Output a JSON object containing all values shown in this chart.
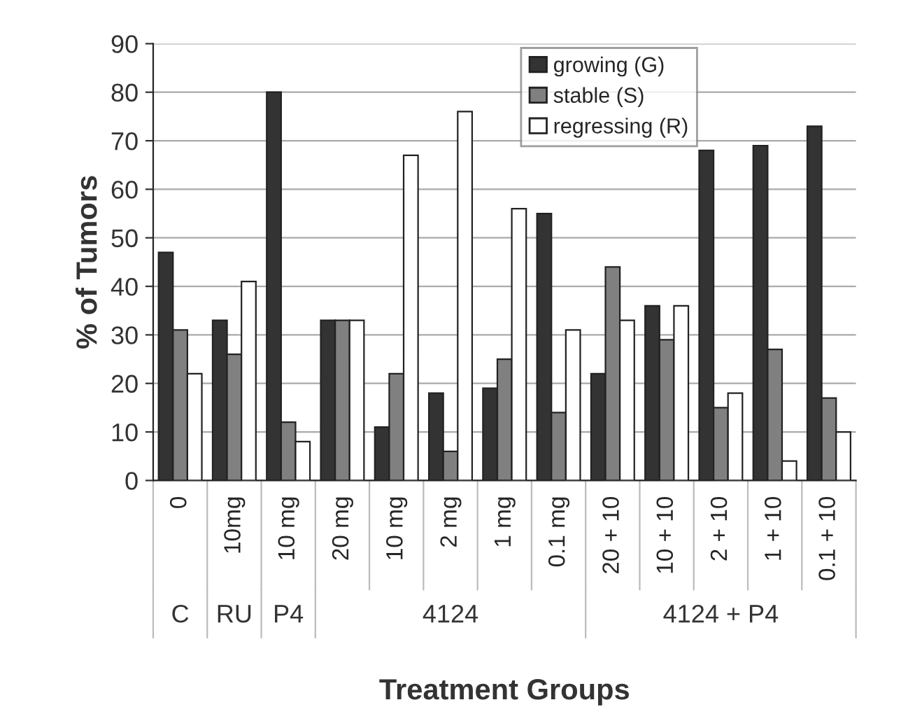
{
  "chart_data": {
    "type": "bar",
    "xlabel": "Treatment Groups",
    "ylabel": "% of Tumors",
    "categories": [
      "0",
      "10mg",
      "10 mg",
      "20 mg",
      "10 mg",
      "2 mg",
      "1 mg",
      "0.1 mg",
      "20 + 10",
      "10 + 10",
      "2 + 10",
      "1 + 10",
      "0.1 + 10"
    ],
    "series": [
      {
        "name": "growing (G)",
        "color": "#333333",
        "values": [
          47,
          33,
          80,
          33,
          11,
          18,
          19,
          55,
          22,
          36,
          68,
          69,
          73
        ]
      },
      {
        "name": "stable (S)",
        "color": "#808080",
        "values": [
          31,
          26,
          12,
          33,
          22,
          6,
          25,
          14,
          44,
          29,
          15,
          27,
          17
        ]
      },
      {
        "name": "regressing (R)",
        "color": "#ffffff",
        "values": [
          22,
          41,
          8,
          33,
          67,
          76,
          56,
          31,
          33,
          36,
          18,
          4,
          10
        ]
      }
    ],
    "annotations": [
      "C",
      "RU",
      "P4",
      "4124",
      "4124 + P4"
    ],
    "ylim": [
      0,
      90
    ],
    "yticks": [
      0,
      10,
      20,
      30,
      40,
      50,
      60,
      70,
      80,
      90
    ],
    "grid": "y",
    "legend": "top right"
  }
}
